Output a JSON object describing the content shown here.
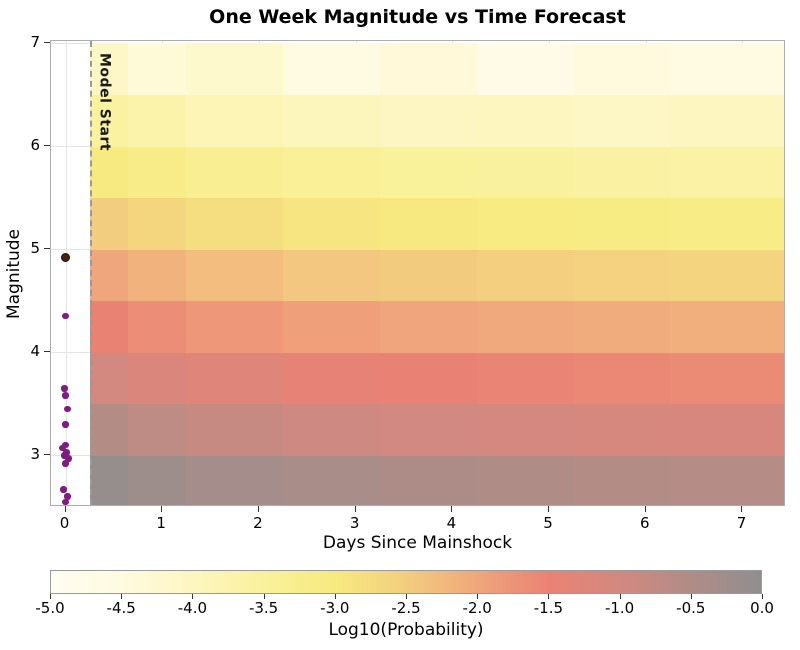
{
  "title": "One Week Magnitude vs Time Forecast",
  "chart_data": {
    "type": "heatmap",
    "title": "One Week Magnitude vs Time Forecast",
    "xlabel": "Days Since Mainshock",
    "ylabel": "Magnitude",
    "xlim": [
      -0.15,
      7.45
    ],
    "ylim": [
      2.5,
      7.02
    ],
    "x_ticks": [
      0,
      1,
      2,
      3,
      4,
      5,
      6,
      7
    ],
    "y_ticks": [
      3,
      4,
      5,
      6,
      7
    ],
    "grid": true,
    "model_start": {
      "x": 0.25,
      "label": "Model Start"
    },
    "heatmap": {
      "time_bin_edges_days": [
        0.25,
        0.65,
        1.25,
        2.25,
        3.25,
        4.25,
        5.25,
        6.25,
        7.45
      ],
      "magnitude_bin_edges": [
        2.5,
        3.0,
        3.5,
        4.0,
        4.5,
        5.0,
        5.5,
        6.0,
        6.5,
        7.0
      ],
      "log10_probability_rows_low_to_high_mag": [
        [
          -0.1,
          -0.22,
          -0.32,
          -0.4,
          -0.46,
          -0.5,
          -0.55,
          -0.58
        ],
        [
          -0.55,
          -0.7,
          -0.82,
          -0.92,
          -0.98,
          -1.04,
          -1.08,
          -1.12
        ],
        [
          -1.02,
          -1.18,
          -1.3,
          -1.42,
          -1.48,
          -1.54,
          -1.58,
          -1.62
        ],
        [
          -1.5,
          -1.66,
          -1.8,
          -1.92,
          -1.98,
          -2.04,
          -2.08,
          -2.12
        ],
        [
          -2.0,
          -2.16,
          -2.3,
          -2.42,
          -2.48,
          -2.54,
          -2.58,
          -2.62
        ],
        [
          -2.5,
          -2.66,
          -2.8,
          -2.92,
          -2.98,
          -3.04,
          -3.08,
          -3.12
        ],
        [
          -3.0,
          -3.16,
          -3.3,
          -3.42,
          -3.48,
          -3.54,
          -3.58,
          -3.62
        ],
        [
          -3.55,
          -3.7,
          -3.85,
          -3.95,
          -4.05,
          -3.98,
          -4.1,
          -4.02
        ],
        [
          -4.1,
          -4.35,
          -4.2,
          -4.55,
          -4.4,
          -4.7,
          -4.45,
          -4.6
        ]
      ]
    },
    "observed_events": {
      "color": "#7d1d80",
      "points": [
        {
          "days": 0.0,
          "magnitude": 2.55
        },
        {
          "days": 0.02,
          "magnitude": 2.6
        },
        {
          "days": -0.02,
          "magnitude": 2.67
        },
        {
          "days": 0.0,
          "magnitude": 2.92
        },
        {
          "days": 0.03,
          "magnitude": 2.97
        },
        {
          "days": -0.01,
          "magnitude": 3.0
        },
        {
          "days": 0.01,
          "magnitude": 3.03
        },
        {
          "days": -0.03,
          "magnitude": 3.07
        },
        {
          "days": 0.0,
          "magnitude": 3.1
        },
        {
          "days": 0.0,
          "magnitude": 3.3
        },
        {
          "days": 0.02,
          "magnitude": 3.45
        },
        {
          "days": 0.0,
          "magnitude": 3.58
        },
        {
          "days": -0.01,
          "magnitude": 3.65
        },
        {
          "days": 0.0,
          "magnitude": 4.35
        }
      ]
    },
    "mainshock": {
      "color": "#40260f",
      "days": 0.0,
      "magnitude": 4.92
    },
    "colorbar": {
      "label": "Log10(Probability)",
      "min": -5.0,
      "max": 0.0,
      "ticks": [
        -5.0,
        -4.5,
        -4.0,
        -3.5,
        -3.0,
        -2.5,
        -2.0,
        -1.5,
        -1.0,
        -0.5,
        0.0
      ],
      "stops": [
        {
          "value": -5.0,
          "color": "#fffdf0"
        },
        {
          "value": -4.5,
          "color": "#fffae0"
        },
        {
          "value": -4.0,
          "color": "#fdf6c0"
        },
        {
          "value": -3.5,
          "color": "#faf19c"
        },
        {
          "value": -3.0,
          "color": "#f7ea80"
        },
        {
          "value": -2.5,
          "color": "#f3cd7f"
        },
        {
          "value": -2.0,
          "color": "#f0a67c"
        },
        {
          "value": -1.5,
          "color": "#ea8274"
        },
        {
          "value": -1.0,
          "color": "#d28981"
        },
        {
          "value": -0.5,
          "color": "#b08c87"
        },
        {
          "value": 0.0,
          "color": "#8f8f8f"
        }
      ]
    }
  }
}
